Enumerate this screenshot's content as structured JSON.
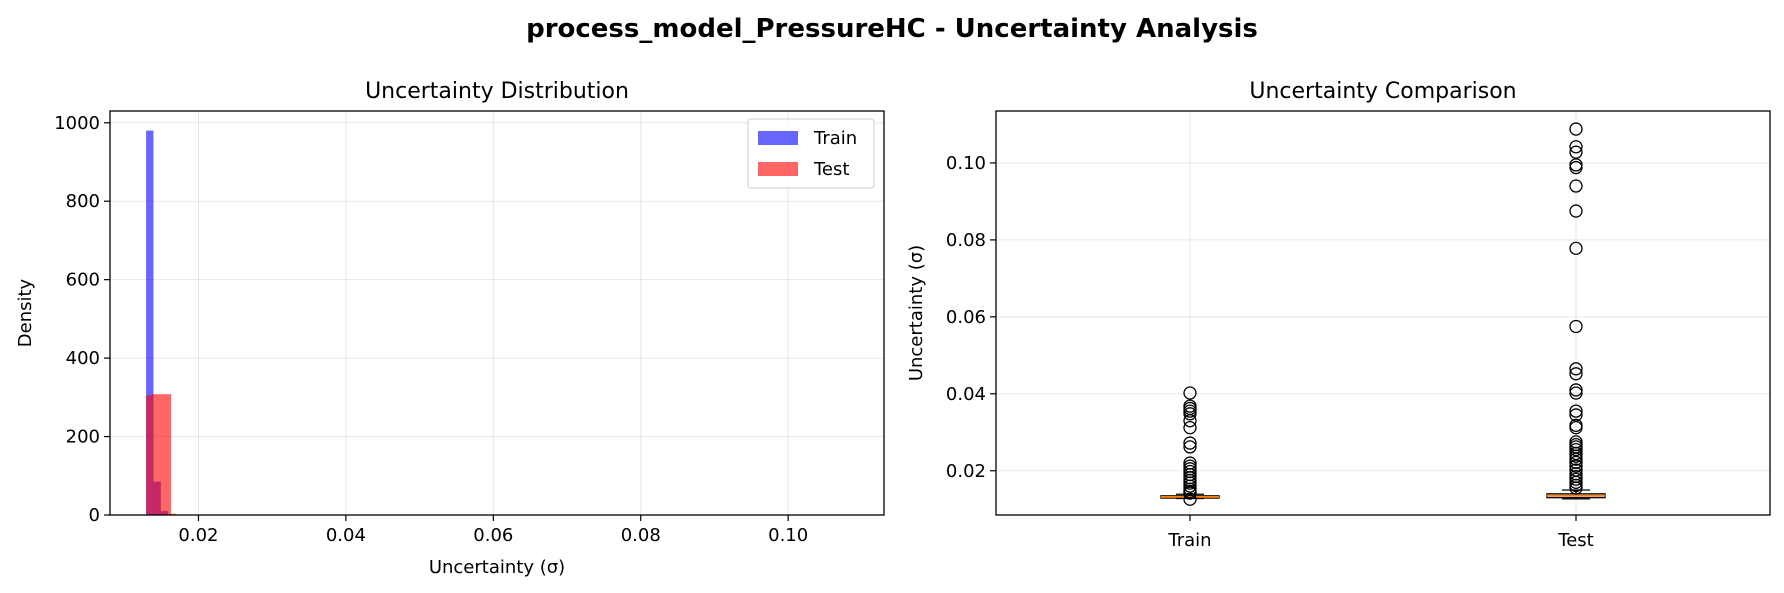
{
  "figure": {
    "title": "process_model_PressureHC - Uncertainty Analysis"
  },
  "chart_data": [
    {
      "type": "histogram",
      "title": "Uncertainty Distribution",
      "xlabel": "Uncertainty (σ)",
      "ylabel": "Density",
      "xlim": [
        0.008,
        0.113
      ],
      "ylim": [
        0,
        1030
      ],
      "xticks": [
        0.02,
        0.04,
        0.06,
        0.08,
        0.1
      ],
      "xtick_labels": [
        "0.02",
        "0.04",
        "0.06",
        "0.08",
        "0.10"
      ],
      "yticks": [
        0,
        200,
        400,
        600,
        800,
        1000
      ],
      "ytick_labels": [
        "0",
        "200",
        "400",
        "600",
        "800",
        "1000"
      ],
      "grid": true,
      "legend": "top-right",
      "series": [
        {
          "name": "Train",
          "color": "#0000ff",
          "alpha": 0.6,
          "bins": [
            {
              "x0": 0.0129,
              "x1": 0.0139,
              "value": 980
            },
            {
              "x0": 0.0139,
              "x1": 0.0149,
              "value": 85
            },
            {
              "x0": 0.0149,
              "x1": 0.0159,
              "value": 10
            }
          ]
        },
        {
          "name": "Test",
          "color": "#ff0000",
          "alpha": 0.6,
          "bins": [
            {
              "x0": 0.0129,
              "x1": 0.0137,
              "value": 305
            },
            {
              "x0": 0.0137,
              "x1": 0.0163,
              "value": 308
            },
            {
              "x0": 0.0163,
              "x1": 0.017,
              "value": 3
            }
          ]
        }
      ]
    },
    {
      "type": "boxplot",
      "title": "Uncertainty Comparison",
      "xlabel": "",
      "ylabel": "Uncertainty (σ)",
      "ylim": [
        0.0085,
        0.1135
      ],
      "yticks": [
        0.02,
        0.04,
        0.06,
        0.08,
        0.1
      ],
      "ytick_labels": [
        "0.02",
        "0.04",
        "0.06",
        "0.08",
        "0.10"
      ],
      "categories": [
        "Train",
        "Test"
      ],
      "grid": true,
      "median_color": "#ff7f0e",
      "boxes": [
        {
          "name": "Train",
          "whislo": 0.0128,
          "q1": 0.0129,
          "median": 0.0132,
          "q3": 0.0135,
          "whishi": 0.0139,
          "fliers": [
            0.0402,
            0.0368,
            0.0362,
            0.0355,
            0.0348,
            0.033,
            0.0312,
            0.0272,
            0.0262,
            0.022,
            0.0212,
            0.0205,
            0.0198,
            0.019,
            0.0182,
            0.0175,
            0.0168,
            0.016,
            0.0152,
            0.0146,
            0.0142,
            0.0126
          ]
        },
        {
          "name": "Test",
          "whislo": 0.0127,
          "q1": 0.013,
          "median": 0.0135,
          "q3": 0.014,
          "whishi": 0.015,
          "fliers": [
            0.1088,
            0.1042,
            0.1028,
            0.0995,
            0.0988,
            0.094,
            0.0875,
            0.0778,
            0.0575,
            0.0465,
            0.0452,
            0.041,
            0.0402,
            0.0355,
            0.0345,
            0.0318,
            0.0312,
            0.0275,
            0.0268,
            0.0262,
            0.0255,
            0.0245,
            0.0238,
            0.023,
            0.0222,
            0.0212,
            0.0202,
            0.0192,
            0.0185,
            0.0178,
            0.017,
            0.0162,
            0.0155
          ]
        }
      ]
    }
  ]
}
